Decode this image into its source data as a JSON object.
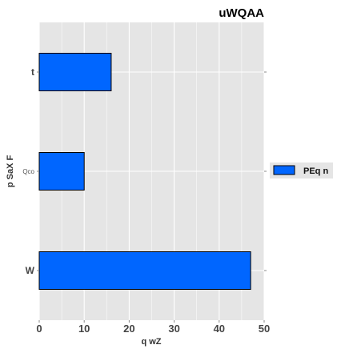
{
  "chart_data": {
    "type": "bar",
    "orientation": "horizontal",
    "title": "uWQAA",
    "xlabel": "q  wZ",
    "ylabel": "p SaX F",
    "categories": [
      "t",
      "Qco",
      "W"
    ],
    "series": [
      {
        "name": "PEq n",
        "values": [
          16,
          10,
          47
        ],
        "color": "#0066ff"
      }
    ],
    "xlim": [
      0,
      50
    ],
    "xticks": [
      0,
      10,
      20,
      30,
      40,
      50
    ],
    "grid": true,
    "legend_position": "right",
    "panel_color": "#e5e5e5",
    "grid_color": "#ffffff"
  }
}
